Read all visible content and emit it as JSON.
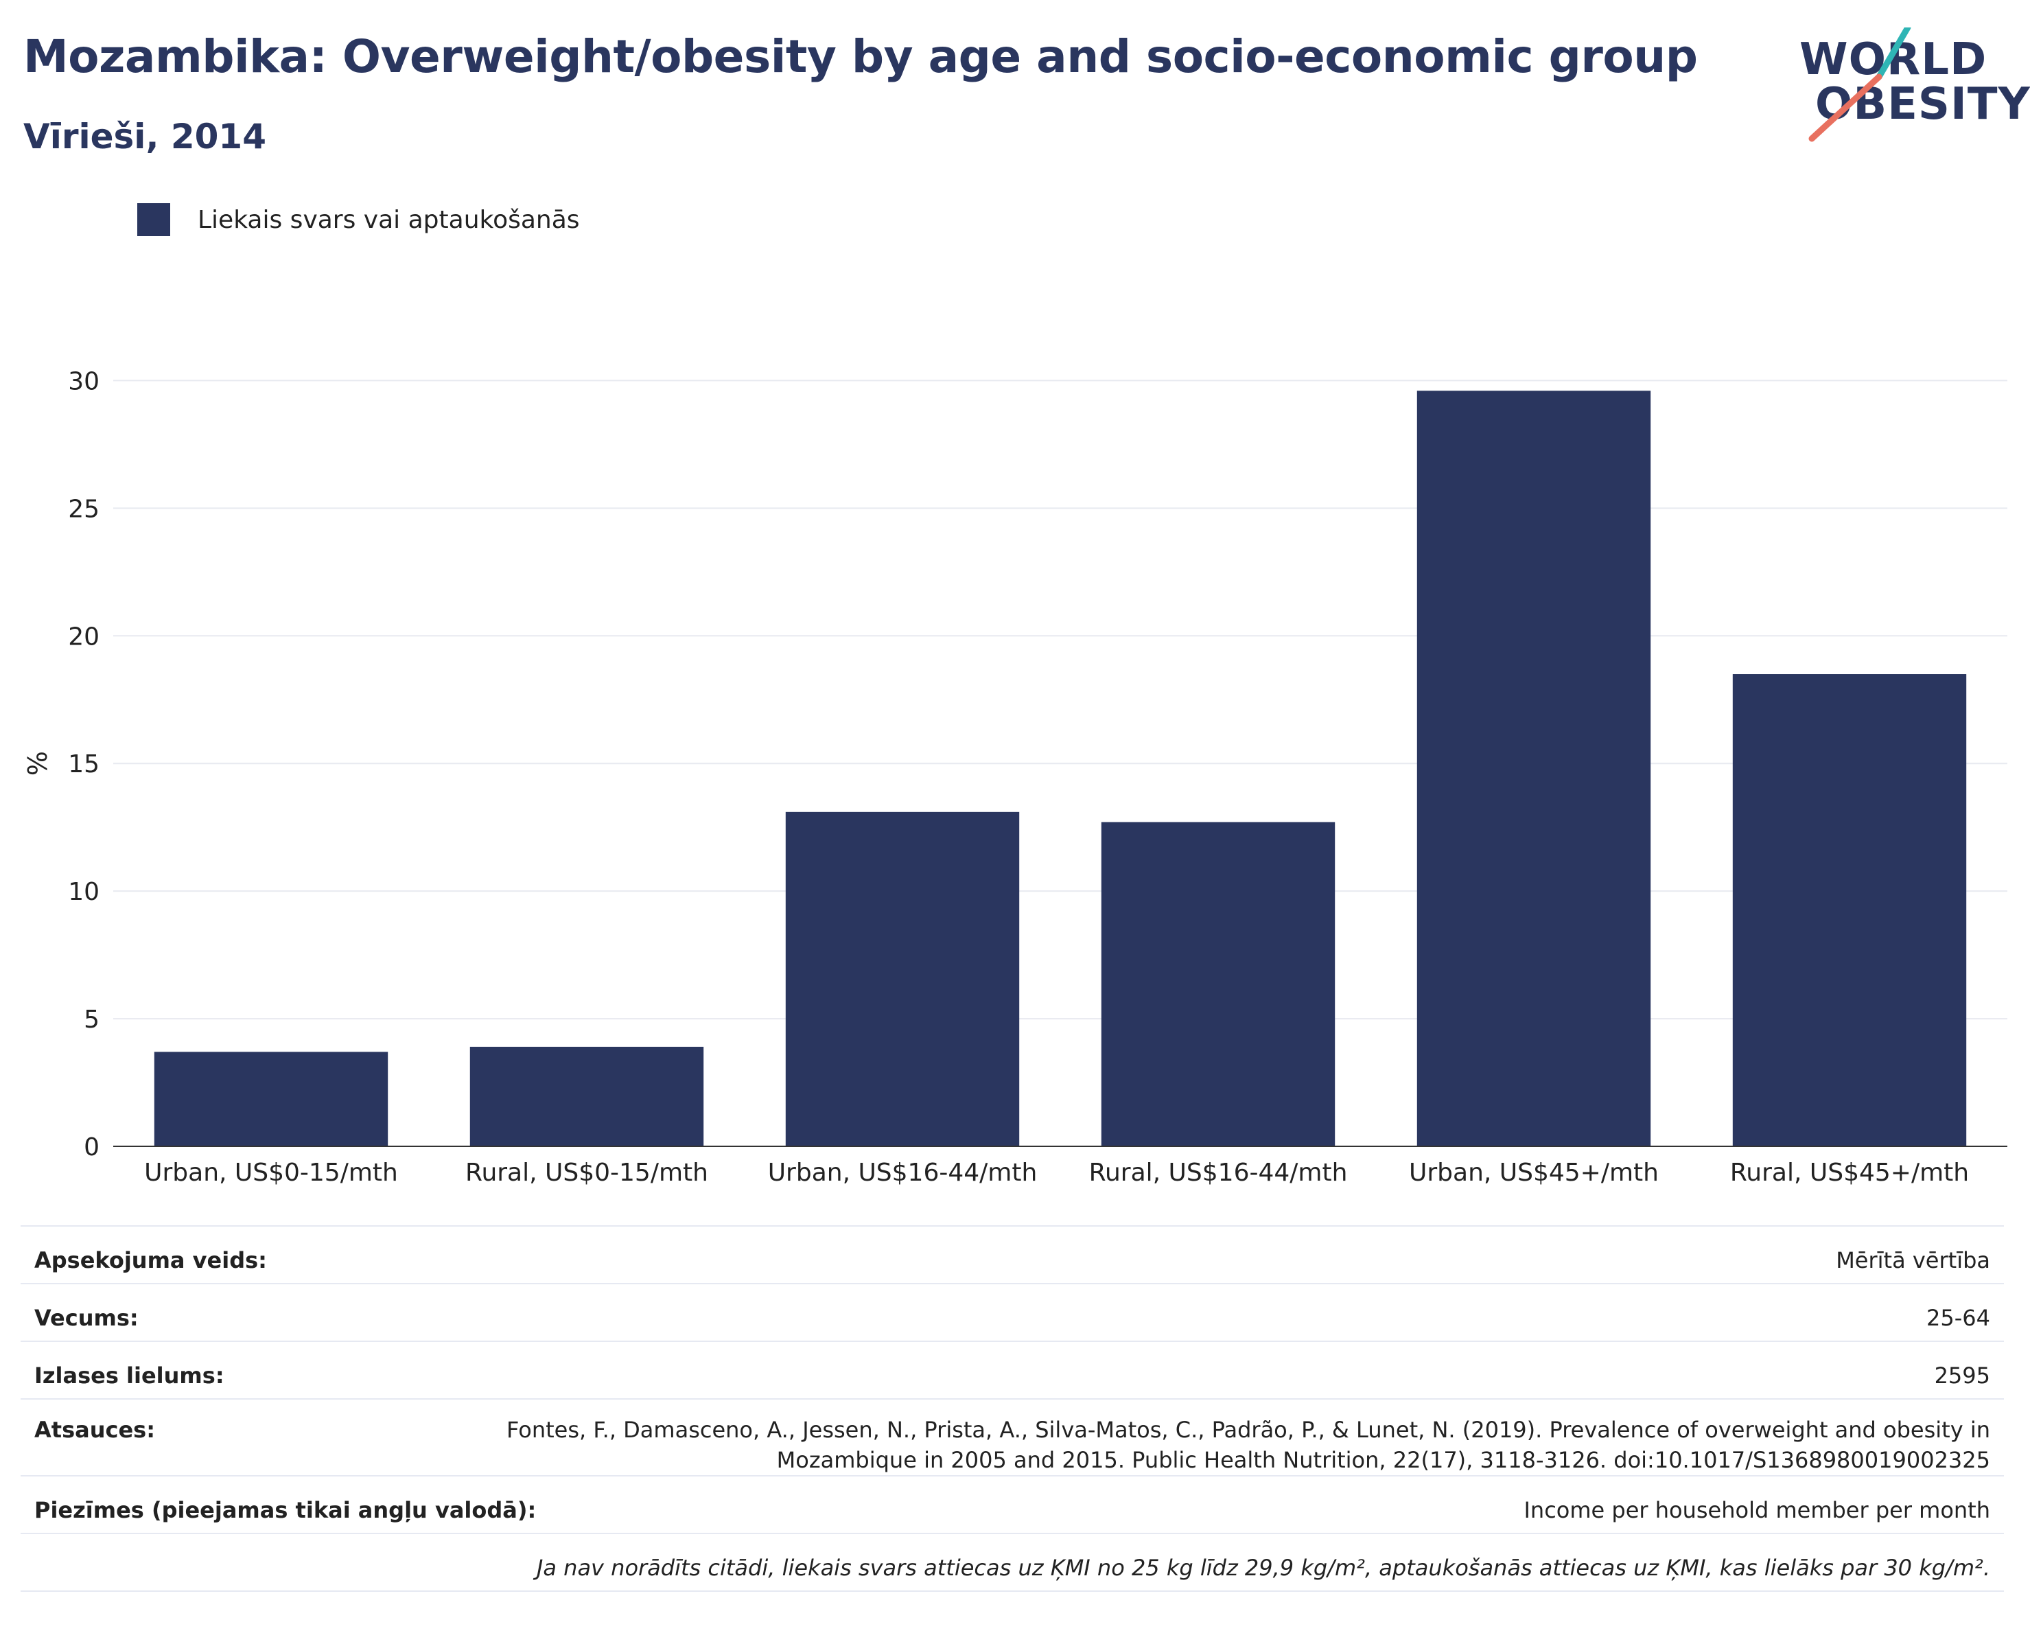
{
  "header": {
    "title": "Mozambika: Overweight/obesity by age and socio-economic group",
    "subtitle": "Vīrieši, 2014"
  },
  "logo": {
    "line1": "WORLD",
    "line2": "OBESITY"
  },
  "legend": {
    "label": "Liekais svars vai aptaukošanās",
    "color": "#2a365f"
  },
  "chart_data": {
    "type": "bar",
    "categories": [
      "Urban, US$0-15/mth",
      "Rural, US$0-15/mth",
      "Urban, US$16-44/mth",
      "Rural, US$16-44/mth",
      "Urban, US$45+/mth",
      "Rural, US$45+/mth"
    ],
    "series": [
      {
        "name": "Liekais svars vai aptaukošanās",
        "values": [
          3.7,
          3.9,
          13.1,
          12.7,
          29.6,
          18.5
        ],
        "color": "#2a365f"
      }
    ],
    "ylabel": "%",
    "ylim": [
      0,
      32
    ],
    "yticks": [
      0,
      5,
      10,
      15,
      20,
      25,
      30
    ],
    "grid": true,
    "legend_position": "top-left"
  },
  "info": {
    "survey_type_label": "Apsekojuma veids:",
    "survey_type_value": "Mērītā vērtība",
    "age_label": "Vecums:",
    "age_value": "25-64",
    "sample_label": "Izlases lielums:",
    "sample_value": "2595",
    "refs_label": "Atsauces:",
    "refs_line1": "Fontes, F., Damasceno, A., Jessen, N., Prista, A., Silva-Matos, C., Padrão, P., & Lunet, N. (2019). Prevalence of overweight and obesity in",
    "refs_line2": "Mozambique in 2005 and 2015. Public Health Nutrition, 22(17), 3118-3126. doi:10.1017/S1368980019002325",
    "notes_label": "Piezīmes (pieejamas tikai angļu valodā):",
    "notes_value": "Income per household member per month",
    "footnote": "Ja nav norādīts citādi, liekais svars attiecas uz ĶMI no 25 kg līdz 29,9 kg/m², aptaukošanās attiecas uz ĶMI, kas lielāks par 30 kg/m²."
  }
}
